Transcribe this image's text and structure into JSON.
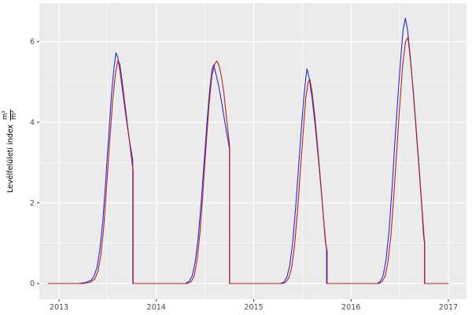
{
  "figure": {
    "background": "#FFFFFF",
    "panel_background": "#EBEBEB",
    "grid_color": "#FFFFFF",
    "tick_color": "#333333",
    "tick_label_color": "#4D4D4D",
    "series_blue_color": "#2828DC",
    "series_red_color": "#B22222"
  },
  "y_axis": {
    "title_text": "Levélfelületi index",
    "title_frac_numerator": "m²",
    "title_frac_denominator": "m²"
  },
  "chart_data": {
    "type": "line",
    "title": "",
    "xlabel": "",
    "ylabel": "Levélfelületi index (m²/m²)",
    "x_range": [
      2012.8,
      2017.19
    ],
    "y_range": [
      -0.39,
      6.94
    ],
    "x_ticks": [
      {
        "value": 2013,
        "label": "2013"
      },
      {
        "value": 2014,
        "label": "2014"
      },
      {
        "value": 2015,
        "label": "2015"
      },
      {
        "value": 2016,
        "label": "2016"
      },
      {
        "value": 2017,
        "label": "2017"
      }
    ],
    "x_minor_ticks": [
      2013.5,
      2014.5,
      2015.5,
      2016.5
    ],
    "y_ticks": [
      {
        "value": 0,
        "label": "0"
      },
      {
        "value": 2,
        "label": "2"
      },
      {
        "value": 4,
        "label": "4"
      },
      {
        "value": 6,
        "label": "6"
      }
    ],
    "y_minor_ticks": [
      1,
      3,
      5
    ],
    "grid": true,
    "legend": "none",
    "series": [
      {
        "name": "modelled-lai-blue",
        "color": "#2828DC",
        "points": [
          [
            2012.89,
            0
          ],
          [
            2013.2,
            0
          ],
          [
            2013.28,
            0.03
          ],
          [
            2013.33,
            0.08
          ],
          [
            2013.36,
            0.18
          ],
          [
            2013.39,
            0.4
          ],
          [
            2013.42,
            0.85
          ],
          [
            2013.45,
            1.55
          ],
          [
            2013.48,
            2.55
          ],
          [
            2013.51,
            3.65
          ],
          [
            2013.54,
            4.7
          ],
          [
            2013.565,
            5.35
          ],
          [
            2013.585,
            5.72
          ],
          [
            2013.605,
            5.6
          ],
          [
            2013.63,
            5.2
          ],
          [
            2013.66,
            4.65
          ],
          [
            2013.69,
            4.1
          ],
          [
            2013.72,
            3.6
          ],
          [
            2013.745,
            3.25
          ],
          [
            2013.758,
            3.05
          ],
          [
            2013.758,
            0
          ],
          [
            2014.3,
            0
          ],
          [
            2014.34,
            0.06
          ],
          [
            2014.37,
            0.2
          ],
          [
            2014.4,
            0.55
          ],
          [
            2014.43,
            1.15
          ],
          [
            2014.46,
            2.0
          ],
          [
            2014.49,
            3.0
          ],
          [
            2014.52,
            4.0
          ],
          [
            2014.55,
            4.85
          ],
          [
            2014.572,
            5.3
          ],
          [
            2014.588,
            5.42
          ],
          [
            2014.61,
            5.22
          ],
          [
            2014.64,
            4.9
          ],
          [
            2014.67,
            4.5
          ],
          [
            2014.7,
            4.05
          ],
          [
            2014.725,
            3.7
          ],
          [
            2014.751,
            3.35
          ],
          [
            2014.751,
            0
          ],
          [
            2015.28,
            0
          ],
          [
            2015.31,
            0.04
          ],
          [
            2015.34,
            0.15
          ],
          [
            2015.37,
            0.45
          ],
          [
            2015.4,
            1.0
          ],
          [
            2015.43,
            1.85
          ],
          [
            2015.46,
            2.85
          ],
          [
            2015.49,
            3.85
          ],
          [
            2015.515,
            4.6
          ],
          [
            2015.535,
            5.1
          ],
          [
            2015.548,
            5.32
          ],
          [
            2015.57,
            5.1
          ],
          [
            2015.6,
            4.6
          ],
          [
            2015.63,
            3.95
          ],
          [
            2015.66,
            3.2
          ],
          [
            2015.69,
            2.4
          ],
          [
            2015.715,
            1.7
          ],
          [
            2015.735,
            1.05
          ],
          [
            2015.748,
            0.85
          ],
          [
            2015.748,
            0
          ],
          [
            2016.27,
            0
          ],
          [
            2016.3,
            0.05
          ],
          [
            2016.33,
            0.2
          ],
          [
            2016.36,
            0.6
          ],
          [
            2016.39,
            1.3
          ],
          [
            2016.42,
            2.3
          ],
          [
            2016.45,
            3.5
          ],
          [
            2016.48,
            4.6
          ],
          [
            2016.51,
            5.6
          ],
          [
            2016.535,
            6.3
          ],
          [
            2016.558,
            6.58
          ],
          [
            2016.58,
            6.3
          ],
          [
            2016.61,
            5.6
          ],
          [
            2016.64,
            4.7
          ],
          [
            2016.67,
            3.75
          ],
          [
            2016.7,
            2.8
          ],
          [
            2016.725,
            1.95
          ],
          [
            2016.745,
            1.2
          ],
          [
            2016.754,
            1.0
          ],
          [
            2016.754,
            0
          ],
          [
            2016.99,
            0
          ]
        ]
      },
      {
        "name": "measured-lai-red",
        "color": "#B22222",
        "points": [
          [
            2012.89,
            0
          ],
          [
            2013.25,
            0
          ],
          [
            2013.32,
            0.03
          ],
          [
            2013.37,
            0.12
          ],
          [
            2013.4,
            0.3
          ],
          [
            2013.43,
            0.7
          ],
          [
            2013.46,
            1.4
          ],
          [
            2013.49,
            2.4
          ],
          [
            2013.52,
            3.5
          ],
          [
            2013.55,
            4.5
          ],
          [
            2013.58,
            5.2
          ],
          [
            2013.605,
            5.54
          ],
          [
            2013.625,
            5.45
          ],
          [
            2013.65,
            5.0
          ],
          [
            2013.68,
            4.4
          ],
          [
            2013.71,
            3.8
          ],
          [
            2013.735,
            3.3
          ],
          [
            2013.752,
            2.95
          ],
          [
            2013.762,
            2.8
          ],
          [
            2013.762,
            0
          ],
          [
            2014.32,
            0
          ],
          [
            2014.36,
            0.05
          ],
          [
            2014.39,
            0.2
          ],
          [
            2014.42,
            0.6
          ],
          [
            2014.45,
            1.3
          ],
          [
            2014.48,
            2.3
          ],
          [
            2014.51,
            3.4
          ],
          [
            2014.54,
            4.4
          ],
          [
            2014.57,
            5.15
          ],
          [
            2014.6,
            5.45
          ],
          [
            2014.622,
            5.52
          ],
          [
            2014.645,
            5.4
          ],
          [
            2014.67,
            5.1
          ],
          [
            2014.693,
            4.75
          ],
          [
            2014.71,
            4.35
          ],
          [
            2014.73,
            3.9
          ],
          [
            2014.753,
            3.4
          ],
          [
            2014.753,
            0
          ],
          [
            2015.3,
            0
          ],
          [
            2015.33,
            0.04
          ],
          [
            2015.36,
            0.13
          ],
          [
            2015.39,
            0.4
          ],
          [
            2015.42,
            0.95
          ],
          [
            2015.45,
            1.8
          ],
          [
            2015.48,
            2.8
          ],
          [
            2015.51,
            3.8
          ],
          [
            2015.535,
            4.6
          ],
          [
            2015.56,
            5.0
          ],
          [
            2015.578,
            5.06
          ],
          [
            2015.6,
            4.75
          ],
          [
            2015.63,
            4.1
          ],
          [
            2015.66,
            3.3
          ],
          [
            2015.69,
            2.45
          ],
          [
            2015.715,
            1.7
          ],
          [
            2015.74,
            1.0
          ],
          [
            2015.755,
            0.8
          ],
          [
            2015.755,
            0
          ],
          [
            2016.29,
            0
          ],
          [
            2016.32,
            0.05
          ],
          [
            2016.35,
            0.18
          ],
          [
            2016.38,
            0.55
          ],
          [
            2016.41,
            1.2
          ],
          [
            2016.44,
            2.2
          ],
          [
            2016.47,
            3.3
          ],
          [
            2016.5,
            4.4
          ],
          [
            2016.53,
            5.4
          ],
          [
            2016.56,
            6.0
          ],
          [
            2016.585,
            6.1
          ],
          [
            2016.61,
            5.55
          ],
          [
            2016.64,
            4.75
          ],
          [
            2016.67,
            3.8
          ],
          [
            2016.7,
            2.85
          ],
          [
            2016.725,
            2.0
          ],
          [
            2016.75,
            1.15
          ],
          [
            2016.757,
            1.0
          ],
          [
            2016.757,
            0
          ],
          [
            2017.0,
            0
          ]
        ]
      }
    ]
  }
}
